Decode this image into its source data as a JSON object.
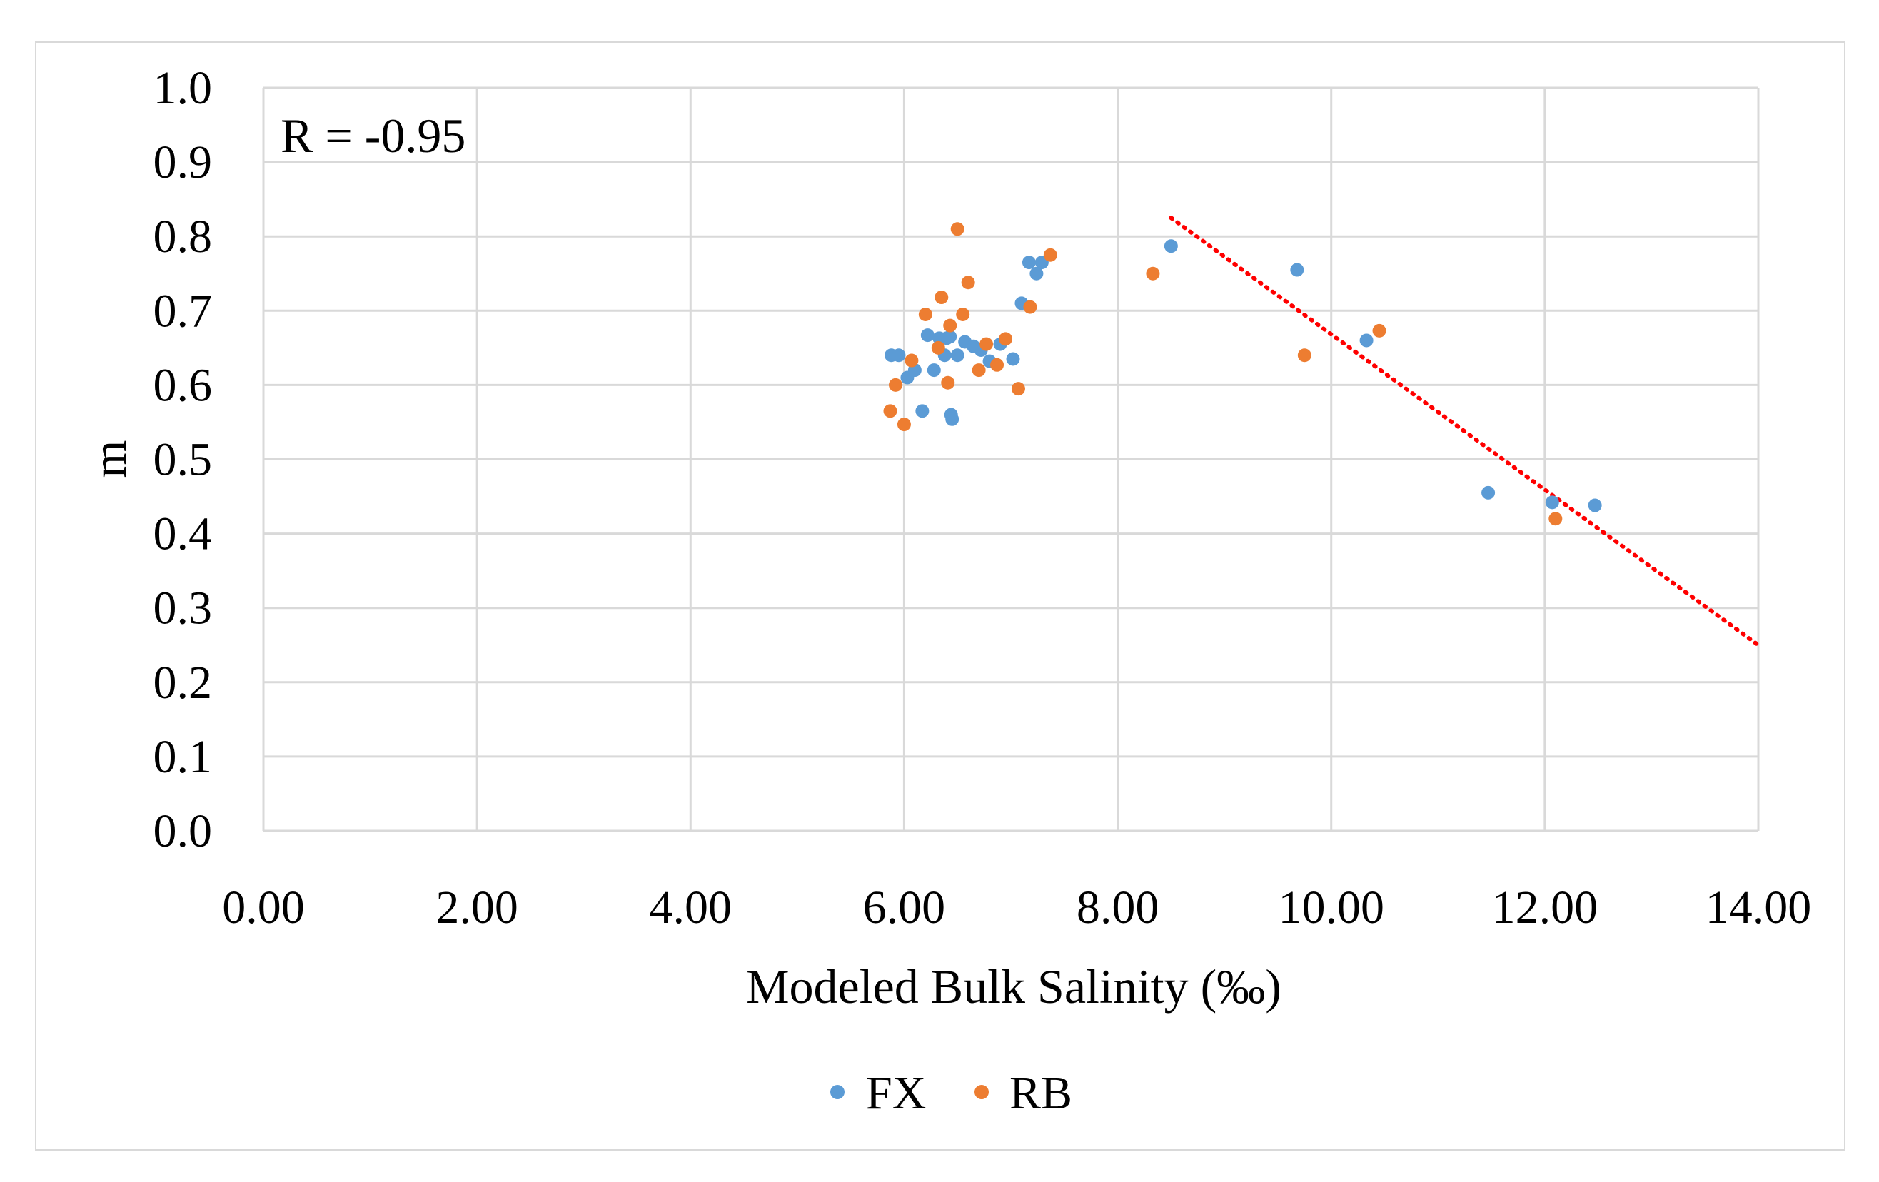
{
  "chart_data": {
    "type": "scatter",
    "title": "",
    "xlabel": "Modeled Bulk Salinity (‰)",
    "ylabel": "m",
    "xlim": [
      0,
      14
    ],
    "ylim": [
      0,
      1
    ],
    "x_ticks": [
      "0.00",
      "2.00",
      "4.00",
      "6.00",
      "8.00",
      "10.00",
      "12.00",
      "14.00"
    ],
    "y_ticks": [
      "0.0",
      "0.1",
      "0.2",
      "0.3",
      "0.4",
      "0.5",
      "0.6",
      "0.7",
      "0.8",
      "0.9",
      "1.0"
    ],
    "grid": true,
    "legend_position": "bottom",
    "annotation": "R = -0.95",
    "trendline": {
      "style": "dotted",
      "color": "#ff0000",
      "x": [
        8.5,
        14.0
      ],
      "y": [
        0.825,
        0.25
      ]
    },
    "series": [
      {
        "name": "FX",
        "color": "#5b9bd5",
        "points": [
          [
            5.88,
            0.64
          ],
          [
            5.95,
            0.64
          ],
          [
            6.03,
            0.61
          ],
          [
            6.1,
            0.62
          ],
          [
            6.17,
            0.565
          ],
          [
            6.22,
            0.667
          ],
          [
            6.28,
            0.62
          ],
          [
            6.33,
            0.663
          ],
          [
            6.38,
            0.64
          ],
          [
            6.4,
            0.663
          ],
          [
            6.43,
            0.665
          ],
          [
            6.44,
            0.56
          ],
          [
            6.45,
            0.554
          ],
          [
            6.5,
            0.64
          ],
          [
            6.57,
            0.658
          ],
          [
            6.65,
            0.652
          ],
          [
            6.72,
            0.647
          ],
          [
            6.8,
            0.632
          ],
          [
            6.9,
            0.655
          ],
          [
            7.02,
            0.635
          ],
          [
            7.1,
            0.71
          ],
          [
            7.17,
            0.765
          ],
          [
            7.24,
            0.75
          ],
          [
            7.29,
            0.765
          ],
          [
            8.5,
            0.787
          ],
          [
            9.68,
            0.755
          ],
          [
            10.33,
            0.66
          ],
          [
            11.47,
            0.455
          ],
          [
            12.07,
            0.442
          ],
          [
            12.47,
            0.438
          ]
        ]
      },
      {
        "name": "RB",
        "color": "#ed7d31",
        "points": [
          [
            5.87,
            0.565
          ],
          [
            5.92,
            0.6
          ],
          [
            6.0,
            0.547
          ],
          [
            6.07,
            0.633
          ],
          [
            6.2,
            0.695
          ],
          [
            6.32,
            0.65
          ],
          [
            6.35,
            0.718
          ],
          [
            6.41,
            0.603
          ],
          [
            6.43,
            0.68
          ],
          [
            6.5,
            0.81
          ],
          [
            6.55,
            0.695
          ],
          [
            6.6,
            0.738
          ],
          [
            6.7,
            0.62
          ],
          [
            6.77,
            0.655
          ],
          [
            6.87,
            0.627
          ],
          [
            6.95,
            0.662
          ],
          [
            7.07,
            0.595
          ],
          [
            7.18,
            0.705
          ],
          [
            7.37,
            0.775
          ],
          [
            8.33,
            0.75
          ],
          [
            9.75,
            0.64
          ],
          [
            10.45,
            0.673
          ],
          [
            12.1,
            0.42
          ]
        ]
      }
    ]
  }
}
